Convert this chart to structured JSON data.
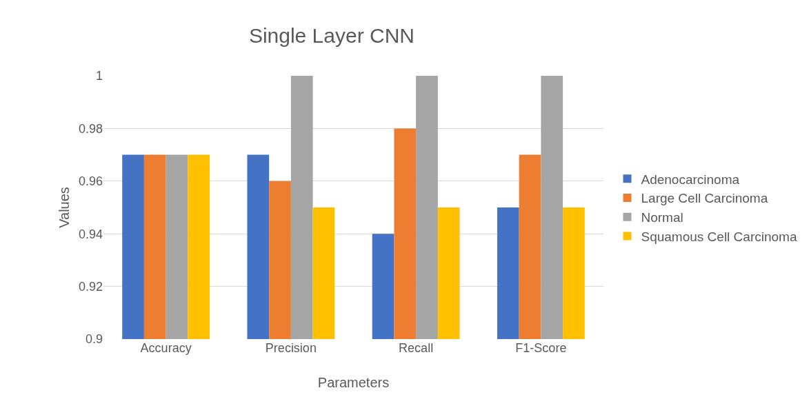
{
  "chart_data": {
    "type": "bar",
    "title": "Single Layer CNN",
    "xlabel": "Parameters",
    "ylabel": "Values",
    "categories": [
      "Accuracy",
      "Precision",
      "Recall",
      "F1-Score"
    ],
    "series": [
      {
        "name": "Adenocarcinoma",
        "color": "#4472c4",
        "values": [
          0.97,
          0.97,
          0.94,
          0.95
        ]
      },
      {
        "name": "Large Cell Carcinoma",
        "color": "#ed7d31",
        "values": [
          0.97,
          0.96,
          0.98,
          0.97
        ]
      },
      {
        "name": "Normal",
        "color": "#a5a5a5",
        "values": [
          0.97,
          1,
          1,
          1
        ]
      },
      {
        "name": "Squamous Cell Carcinoma",
        "color": "#ffc000",
        "values": [
          0.97,
          0.95,
          0.95,
          0.95
        ]
      }
    ],
    "ylim": [
      0.9,
      1
    ],
    "yticks": [
      0.9,
      0.92,
      0.94,
      0.96,
      0.98,
      1
    ],
    "grid": "y",
    "legend": "right"
  }
}
